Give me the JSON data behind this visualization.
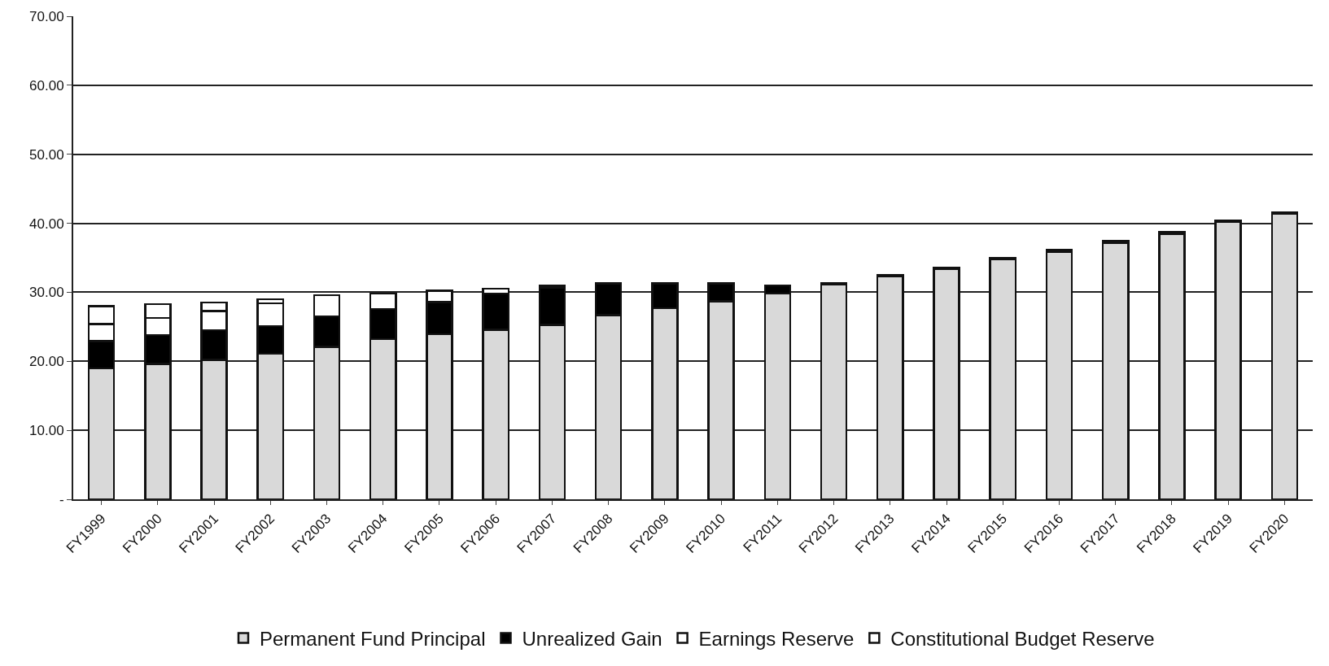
{
  "chart_data": {
    "type": "bar",
    "stacked": true,
    "categories": [
      "FY1999",
      "FY2000",
      "FY2001",
      "FY2002",
      "FY2003",
      "FY2004",
      "FY2005",
      "FY2006",
      "FY2007",
      "FY2008",
      "FY2009",
      "FY2010",
      "FY2011",
      "FY2012",
      "FY2013",
      "FY2014",
      "FY2015",
      "FY2016",
      "FY2017",
      "FY2018",
      "FY2019",
      "FY2020"
    ],
    "series": [
      {
        "name": "Permanent Fund Principal",
        "color": "#d9d9d9",
        "values": [
          19.0,
          19.6,
          20.2,
          21.1,
          22.1,
          23.2,
          23.9,
          24.6,
          25.3,
          26.7,
          27.7,
          28.7,
          29.8,
          31.1,
          32.3,
          33.4,
          34.8,
          35.9,
          37.2,
          38.5,
          40.2,
          41.4
        ]
      },
      {
        "name": "Unrealized Gain",
        "color": "#000000",
        "values": [
          3.9,
          4.2,
          4.3,
          4.0,
          4.4,
          4.4,
          4.7,
          5.2,
          5.4,
          4.6,
          3.6,
          2.6,
          1.2,
          0.2,
          0.2,
          0.2,
          0.2,
          0.2,
          0.2,
          0.2,
          0.2,
          0.2
        ]
      },
      {
        "name": "Earnings Reserve",
        "color": "#ffffff",
        "values": [
          2.5,
          2.5,
          2.8,
          3.3,
          3.1,
          2.2,
          1.6,
          0.7,
          0.3,
          null,
          null,
          null,
          null,
          null,
          null,
          null,
          null,
          null,
          null,
          null,
          null,
          null
        ]
      },
      {
        "name": "Constitutional Budget Reserve",
        "color": "#ffffff",
        "values": [
          2.6,
          2.0,
          1.2,
          0.6,
          null,
          null,
          null,
          null,
          null,
          null,
          null,
          null,
          null,
          null,
          null,
          null,
          null,
          null,
          null,
          null,
          null,
          null
        ]
      }
    ],
    "ylim": [
      0,
      70
    ],
    "yticks": [
      {
        "value": 0,
        "label": "-"
      },
      {
        "value": 10,
        "label": "10.00"
      },
      {
        "value": 20,
        "label": "20.00"
      },
      {
        "value": 30,
        "label": "30.00"
      },
      {
        "value": 40,
        "label": "40.00"
      },
      {
        "value": 50,
        "label": "50.00"
      },
      {
        "value": 60,
        "label": "60.00"
      },
      {
        "value": 70,
        "label": "70.00"
      }
    ],
    "grid": "y",
    "legend": "bottom"
  }
}
